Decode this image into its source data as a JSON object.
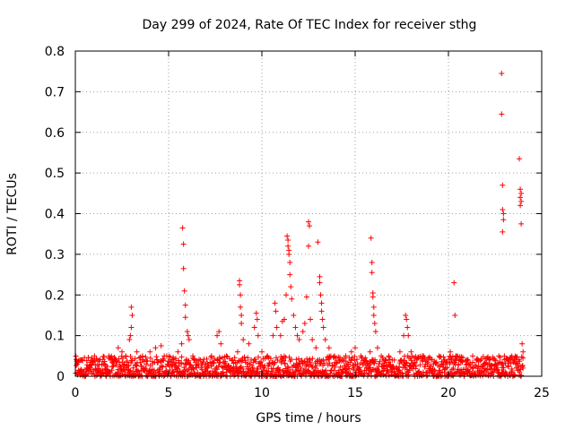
{
  "chart_data": {
    "type": "scatter",
    "title": "Day 299 of 2024, Rate Of TEC Index for receiver sthg",
    "xlabel": "GPS time / hours",
    "ylabel": "ROTI / TECUs",
    "xlim": [
      0,
      25
    ],
    "ylim": [
      0,
      0.8
    ],
    "xticks": [
      0,
      5,
      10,
      15,
      20,
      25
    ],
    "xtick_labels": [
      "0",
      "5",
      "10",
      "15",
      "20",
      "25"
    ],
    "yticks": [
      0,
      0.1,
      0.2,
      0.3,
      0.4,
      0.5,
      0.6,
      0.7,
      0.8
    ],
    "ytick_labels": [
      "0",
      "0.1",
      "0.2",
      "0.3",
      "0.4",
      "0.5",
      "0.6",
      "0.7",
      "0.8"
    ],
    "grid": true,
    "marker": "+",
    "color": "#ff0000",
    "series": [
      {
        "name": "ROTI",
        "points": [
          [
            0.1,
            0.03
          ],
          [
            0.3,
            0.04
          ],
          [
            0.6,
            0.02
          ],
          [
            0.9,
            0.03
          ],
          [
            1.2,
            0.04
          ],
          [
            1.5,
            0.03
          ],
          [
            1.8,
            0.05
          ],
          [
            2.0,
            0.04
          ],
          [
            2.3,
            0.07
          ],
          [
            2.5,
            0.06
          ],
          [
            2.7,
            0.05
          ],
          [
            2.9,
            0.09
          ],
          [
            2.95,
            0.1
          ],
          [
            3.0,
            0.17
          ],
          [
            3.05,
            0.15
          ],
          [
            3.0,
            0.12
          ],
          [
            3.3,
            0.06
          ],
          [
            3.6,
            0.05
          ],
          [
            4.0,
            0.06
          ],
          [
            4.3,
            0.07
          ],
          [
            4.6,
            0.075
          ],
          [
            4.9,
            0.05
          ],
          [
            5.2,
            0.04
          ],
          [
            5.5,
            0.06
          ],
          [
            5.7,
            0.08
          ],
          [
            5.75,
            0.365
          ],
          [
            5.8,
            0.325
          ],
          [
            5.8,
            0.265
          ],
          [
            5.85,
            0.21
          ],
          [
            5.9,
            0.175
          ],
          [
            5.9,
            0.145
          ],
          [
            6.0,
            0.11
          ],
          [
            6.05,
            0.1
          ],
          [
            6.1,
            0.09
          ],
          [
            6.3,
            0.05
          ],
          [
            6.7,
            0.04
          ],
          [
            7.0,
            0.03
          ],
          [
            7.3,
            0.05
          ],
          [
            7.6,
            0.1
          ],
          [
            7.7,
            0.11
          ],
          [
            7.8,
            0.08
          ],
          [
            8.1,
            0.05
          ],
          [
            8.4,
            0.04
          ],
          [
            8.7,
            0.06
          ],
          [
            8.8,
            0.235
          ],
          [
            8.8,
            0.225
          ],
          [
            8.85,
            0.2
          ],
          [
            8.85,
            0.17
          ],
          [
            8.9,
            0.15
          ],
          [
            8.9,
            0.13
          ],
          [
            9.0,
            0.09
          ],
          [
            9.3,
            0.08
          ],
          [
            9.6,
            0.12
          ],
          [
            9.7,
            0.155
          ],
          [
            9.75,
            0.14
          ],
          [
            9.8,
            0.1
          ],
          [
            10.0,
            0.06
          ],
          [
            10.3,
            0.05
          ],
          [
            10.6,
            0.1
          ],
          [
            10.7,
            0.18
          ],
          [
            10.75,
            0.16
          ],
          [
            10.8,
            0.12
          ],
          [
            11.0,
            0.1
          ],
          [
            11.1,
            0.135
          ],
          [
            11.2,
            0.14
          ],
          [
            11.3,
            0.2
          ],
          [
            11.35,
            0.345
          ],
          [
            11.4,
            0.335
          ],
          [
            11.4,
            0.32
          ],
          [
            11.45,
            0.31
          ],
          [
            11.45,
            0.3
          ],
          [
            11.5,
            0.28
          ],
          [
            11.5,
            0.25
          ],
          [
            11.55,
            0.22
          ],
          [
            11.6,
            0.19
          ],
          [
            11.7,
            0.15
          ],
          [
            11.8,
            0.12
          ],
          [
            11.9,
            0.1
          ],
          [
            12.0,
            0.09
          ],
          [
            12.2,
            0.11
          ],
          [
            12.3,
            0.13
          ],
          [
            12.4,
            0.195
          ],
          [
            12.5,
            0.38
          ],
          [
            12.55,
            0.37
          ],
          [
            12.5,
            0.32
          ],
          [
            12.6,
            0.14
          ],
          [
            12.7,
            0.09
          ],
          [
            12.9,
            0.07
          ],
          [
            13.0,
            0.33
          ],
          [
            13.1,
            0.245
          ],
          [
            13.1,
            0.23
          ],
          [
            13.15,
            0.2
          ],
          [
            13.2,
            0.18
          ],
          [
            13.2,
            0.16
          ],
          [
            13.25,
            0.14
          ],
          [
            13.3,
            0.12
          ],
          [
            13.4,
            0.09
          ],
          [
            13.6,
            0.07
          ],
          [
            13.9,
            0.05
          ],
          [
            14.2,
            0.04
          ],
          [
            14.5,
            0.05
          ],
          [
            14.8,
            0.06
          ],
          [
            15.0,
            0.07
          ],
          [
            15.3,
            0.05
          ],
          [
            15.5,
            0.04
          ],
          [
            15.8,
            0.06
          ],
          [
            15.85,
            0.34
          ],
          [
            15.9,
            0.28
          ],
          [
            15.9,
            0.255
          ],
          [
            15.95,
            0.205
          ],
          [
            15.95,
            0.195
          ],
          [
            16.0,
            0.17
          ],
          [
            16.0,
            0.15
          ],
          [
            16.05,
            0.13
          ],
          [
            16.1,
            0.11
          ],
          [
            16.2,
            0.07
          ],
          [
            16.5,
            0.04
          ],
          [
            16.8,
            0.05
          ],
          [
            17.1,
            0.04
          ],
          [
            17.4,
            0.06
          ],
          [
            17.6,
            0.1
          ],
          [
            17.7,
            0.15
          ],
          [
            17.75,
            0.14
          ],
          [
            17.8,
            0.12
          ],
          [
            17.85,
            0.1
          ],
          [
            18.0,
            0.06
          ],
          [
            18.3,
            0.04
          ],
          [
            18.6,
            0.05
          ],
          [
            18.9,
            0.04
          ],
          [
            19.2,
            0.03
          ],
          [
            19.5,
            0.05
          ],
          [
            19.8,
            0.04
          ],
          [
            20.1,
            0.06
          ],
          [
            20.3,
            0.23
          ],
          [
            20.35,
            0.15
          ],
          [
            20.4,
            0.05
          ],
          [
            20.7,
            0.04
          ],
          [
            21.0,
            0.03
          ],
          [
            21.3,
            0.05
          ],
          [
            21.6,
            0.04
          ],
          [
            21.9,
            0.03
          ],
          [
            22.2,
            0.04
          ],
          [
            22.5,
            0.03
          ],
          [
            22.7,
            0.05
          ],
          [
            22.85,
            0.745
          ],
          [
            22.85,
            0.645
          ],
          [
            22.9,
            0.47
          ],
          [
            22.9,
            0.41
          ],
          [
            22.95,
            0.4
          ],
          [
            22.95,
            0.385
          ],
          [
            22.9,
            0.355
          ],
          [
            23.0,
            0.05
          ],
          [
            23.2,
            0.04
          ],
          [
            23.4,
            0.05
          ],
          [
            23.6,
            0.03
          ],
          [
            23.8,
            0.535
          ],
          [
            23.85,
            0.46
          ],
          [
            23.9,
            0.45
          ],
          [
            23.85,
            0.44
          ],
          [
            23.9,
            0.43
          ],
          [
            23.85,
            0.42
          ],
          [
            23.9,
            0.375
          ],
          [
            23.95,
            0.08
          ],
          [
            24.0,
            0.06
          ],
          [
            24.0,
            0.02
          ]
        ]
      }
    ],
    "dense_band": {
      "note": "dense low-level noise band of points across the day",
      "x_range": [
        0,
        24
      ],
      "y_range": [
        0,
        0.05
      ]
    }
  }
}
